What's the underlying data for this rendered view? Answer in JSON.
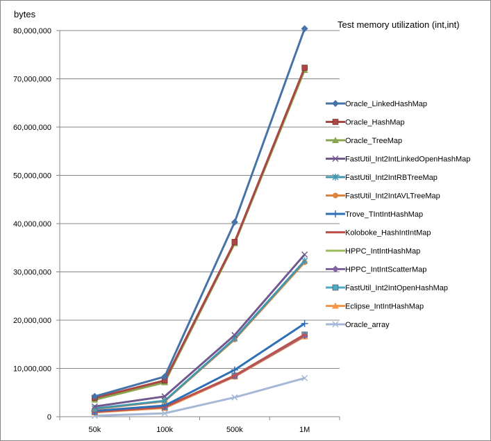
{
  "chart_data": {
    "type": "line",
    "title": "Test  memory utilization (int,int)",
    "ylabel": "bytes",
    "xlabel": "",
    "categories": [
      "50k",
      "100k",
      "500k",
      "1M"
    ],
    "ylim": [
      0,
      80000000
    ],
    "yticks": [
      0,
      10000000,
      20000000,
      30000000,
      40000000,
      50000000,
      60000000,
      70000000,
      80000000
    ],
    "ytick_labels": [
      "0",
      "10,000,000",
      "20,000,000",
      "30,000,000",
      "40,000,000",
      "50,000,000",
      "60,000,000",
      "70,000,000",
      "80,000,000"
    ],
    "grid": "horizontal",
    "legend": "right",
    "series": [
      {
        "name": "Oracle_LinkedHashMap",
        "values": [
          4200000,
          8300000,
          40300000,
          80400000
        ],
        "color": "#4572A7",
        "marker": "diamond"
      },
      {
        "name": "Oracle_HashMap",
        "values": [
          3900000,
          7500000,
          36200000,
          72300000
        ],
        "color": "#AA4643",
        "marker": "square"
      },
      {
        "name": "Oracle_TreeMap",
        "values": [
          3500000,
          7100000,
          35900000,
          71800000
        ],
        "color": "#89A54E",
        "marker": "triangle"
      },
      {
        "name": "FastUtil_Int2IntLinkedOpenHashMap",
        "values": [
          2100000,
          4200000,
          16900000,
          33600000
        ],
        "color": "#71588F",
        "marker": "x"
      },
      {
        "name": "FastUtil_Int2IntRBTreeMap",
        "values": [
          1700000,
          3300000,
          16200000,
          32300000
        ],
        "color": "#4198AF",
        "marker": "star"
      },
      {
        "name": "FastUtil_Int2IntAVLTreeMap",
        "values": [
          1600000,
          3200000,
          16000000,
          32000000
        ],
        "color": "#DB843D",
        "marker": "circle"
      },
      {
        "name": "Trove_TIntIntHashMap",
        "values": [
          1200000,
          2300000,
          9700000,
          19300000
        ],
        "color": "#2F6FB5",
        "marker": "plus"
      },
      {
        "name": "Koloboke_HashIntIntMap",
        "values": [
          1000000,
          2000000,
          8500000,
          17000000
        ],
        "color": "#C0504D",
        "marker": "dash"
      },
      {
        "name": "HPPC_IntIntHashMap",
        "values": [
          1000000,
          2000000,
          8500000,
          17000000
        ],
        "color": "#9BBB59",
        "marker": "dash"
      },
      {
        "name": "HPPC_IntIntScatterMap",
        "values": [
          1000000,
          2000000,
          8400000,
          16800000
        ],
        "color": "#8064A2",
        "marker": "diamond"
      },
      {
        "name": "FastUtil_Int2IntOpenHashMap",
        "values": [
          1000000,
          2000000,
          8500000,
          17000000
        ],
        "color": "#4BACC6",
        "marker": "square"
      },
      {
        "name": "Eclipse_IntIntHashMap",
        "values": [
          900000,
          1800000,
          8300000,
          16600000
        ],
        "color": "#F79646",
        "marker": "triangle"
      },
      {
        "name": "Oracle_array",
        "values": [
          200000,
          700000,
          4000000,
          8000000
        ],
        "color": "#A5B8D6",
        "marker": "x"
      }
    ]
  }
}
